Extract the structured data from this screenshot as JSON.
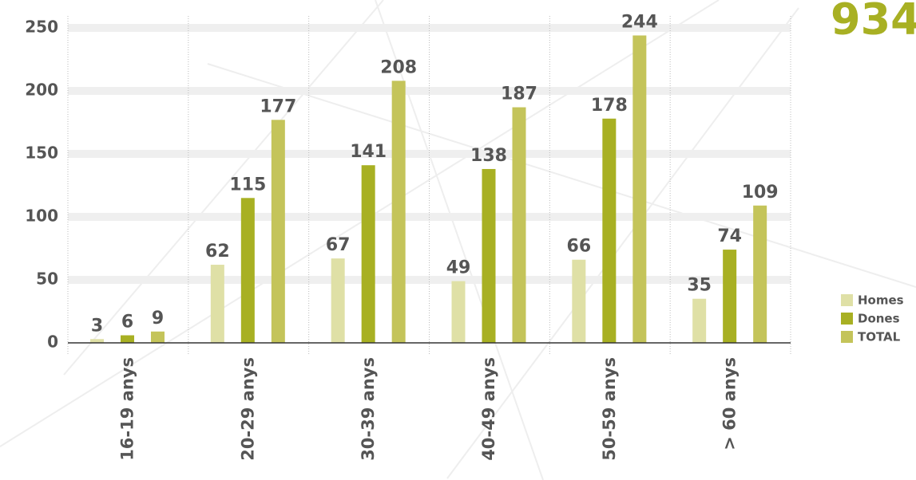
{
  "chart_data": {
    "type": "bar",
    "title": "934",
    "categories": [
      "16-19 anys",
      "20-29 anys",
      "30-39 anys",
      "40-49 anys",
      "50-59 anys",
      "> 60 anys"
    ],
    "series": [
      {
        "name": "Homes",
        "color": "#dfe0a6",
        "values": [
          3,
          62,
          67,
          49,
          66,
          35
        ]
      },
      {
        "name": "Dones",
        "color": "#a8b023",
        "values": [
          6,
          115,
          141,
          138,
          178,
          74
        ]
      },
      {
        "name": "TOTAL",
        "color": "#c4c45a",
        "values": [
          9,
          177,
          208,
          187,
          244,
          109
        ]
      }
    ],
    "ylim": [
      0,
      250
    ],
    "yticks": [
      0,
      50,
      100,
      150,
      200,
      250
    ],
    "grid": true,
    "legend": "right"
  }
}
